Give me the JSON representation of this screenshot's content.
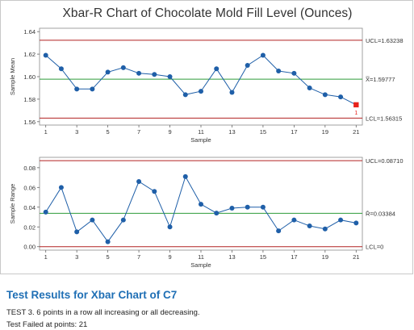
{
  "chart_data": [
    {
      "type": "line",
      "title": "Xbar-R Chart of Chocolate Mold Fill Level (Ounces)",
      "xlabel": "Sample",
      "ylabel": "Sample Mean",
      "x": [
        1,
        2,
        3,
        4,
        5,
        6,
        7,
        8,
        9,
        10,
        11,
        12,
        13,
        14,
        15,
        16,
        17,
        18,
        19,
        20,
        21
      ],
      "values": [
        1.619,
        1.607,
        1.589,
        1.589,
        1.604,
        1.608,
        1.603,
        1.602,
        1.6,
        1.584,
        1.587,
        1.607,
        1.586,
        1.61,
        1.619,
        1.605,
        1.603,
        1.59,
        1.584,
        1.582,
        1.575
      ],
      "x_ticks": [
        "1",
        "3",
        "5",
        "7",
        "9",
        "11",
        "13",
        "15",
        "17",
        "19",
        "21"
      ],
      "y_ticks": [
        "1.56",
        "1.58",
        "1.60",
        "1.62",
        "1.64"
      ],
      "ylim": [
        1.557,
        1.643
      ],
      "ucl": 1.63238,
      "center": 1.59777,
      "lcl": 1.56315,
      "ucl_label": "UCL=1.63238",
      "center_label": "X̿=1.59777",
      "lcl_label": "LCL=1.56315",
      "flagged_points": [
        21
      ],
      "flag_marker": "1",
      "colors": {
        "series": "#1f5fa8",
        "limits": "#b22222",
        "center": "#2e9b3a",
        "flag": "#e8221b"
      }
    },
    {
      "type": "line",
      "xlabel": "Sample",
      "ylabel": "Sample Range",
      "x": [
        1,
        2,
        3,
        4,
        5,
        6,
        7,
        8,
        9,
        10,
        11,
        12,
        13,
        14,
        15,
        16,
        17,
        18,
        19,
        20,
        21
      ],
      "values": [
        0.035,
        0.06,
        0.015,
        0.027,
        0.005,
        0.027,
        0.066,
        0.056,
        0.02,
        0.071,
        0.043,
        0.034,
        0.039,
        0.04,
        0.04,
        0.016,
        0.027,
        0.021,
        0.018,
        0.027,
        0.024
      ],
      "x_ticks": [
        "1",
        "3",
        "5",
        "7",
        "9",
        "11",
        "13",
        "15",
        "17",
        "19",
        "21"
      ],
      "y_ticks": [
        "0.00",
        "0.02",
        "0.04",
        "0.06",
        "0.08"
      ],
      "ylim": [
        -0.0035,
        0.0905
      ],
      "ucl": 0.0871,
      "center": 0.03384,
      "lcl": 0,
      "ucl_label": "UCL=0.08710",
      "center_label": "R̄=0.03384",
      "lcl_label": "LCL=0",
      "colors": {
        "series": "#1f5fa8",
        "limits": "#b22222",
        "center": "#2e9b3a"
      }
    }
  ],
  "results": {
    "heading": "Test Results for Xbar Chart of C7",
    "description": "TEST 3. 6 points in a row all increasing or all decreasing.",
    "failed": "Test Failed at points:  21"
  }
}
